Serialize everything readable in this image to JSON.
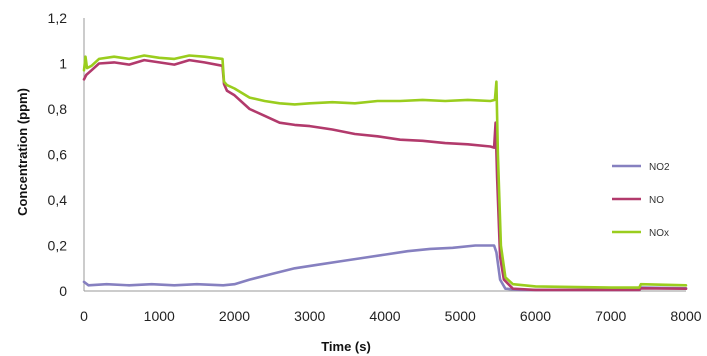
{
  "chart_data": {
    "type": "line",
    "title": "",
    "xlabel": "Time (s)",
    "ylabel": "Concentration (ppm)",
    "xlim": [
      0,
      8000
    ],
    "ylim": [
      0,
      1.2
    ],
    "x_ticks": [
      "0",
      "1000",
      "2000",
      "3000",
      "4000",
      "5000",
      "6000",
      "7000",
      "8000"
    ],
    "y_ticks": [
      "0",
      "0,2",
      "0,4",
      "0,6",
      "0,8",
      "1",
      "1,2"
    ],
    "grid": false,
    "legend_position": "right",
    "series": [
      {
        "name": "NO2",
        "color": "#8680c0",
        "points": [
          [
            0,
            0.04
          ],
          [
            60,
            0.025
          ],
          [
            300,
            0.03
          ],
          [
            600,
            0.025
          ],
          [
            900,
            0.03
          ],
          [
            1200,
            0.025
          ],
          [
            1500,
            0.03
          ],
          [
            1850,
            0.025
          ],
          [
            2000,
            0.03
          ],
          [
            2200,
            0.05
          ],
          [
            2500,
            0.075
          ],
          [
            2800,
            0.1
          ],
          [
            3100,
            0.115
          ],
          [
            3400,
            0.13
          ],
          [
            3700,
            0.145
          ],
          [
            4000,
            0.16
          ],
          [
            4300,
            0.175
          ],
          [
            4600,
            0.185
          ],
          [
            4900,
            0.19
          ],
          [
            5200,
            0.2
          ],
          [
            5450,
            0.2
          ],
          [
            5480,
            0.17
          ],
          [
            5530,
            0.05
          ],
          [
            5600,
            0.01
          ],
          [
            5800,
            0.005
          ],
          [
            6200,
            0.005
          ],
          [
            7000,
            0.005
          ],
          [
            7380,
            0.005
          ],
          [
            7400,
            0.015
          ],
          [
            8000,
            0.012
          ]
        ]
      },
      {
        "name": "NO",
        "color": "#b23a6c",
        "points": [
          [
            0,
            0.93
          ],
          [
            30,
            0.95
          ],
          [
            100,
            0.97
          ],
          [
            200,
            1.0
          ],
          [
            400,
            1.005
          ],
          [
            600,
            0.995
          ],
          [
            800,
            1.015
          ],
          [
            1000,
            1.005
          ],
          [
            1200,
            0.995
          ],
          [
            1400,
            1.015
          ],
          [
            1600,
            1.005
          ],
          [
            1840,
            0.99
          ],
          [
            1860,
            0.91
          ],
          [
            1900,
            0.88
          ],
          [
            2000,
            0.86
          ],
          [
            2200,
            0.8
          ],
          [
            2400,
            0.77
          ],
          [
            2600,
            0.74
          ],
          [
            2800,
            0.73
          ],
          [
            3000,
            0.725
          ],
          [
            3300,
            0.71
          ],
          [
            3600,
            0.69
          ],
          [
            3900,
            0.68
          ],
          [
            4200,
            0.665
          ],
          [
            4500,
            0.66
          ],
          [
            4800,
            0.65
          ],
          [
            5100,
            0.645
          ],
          [
            5400,
            0.635
          ],
          [
            5450,
            0.63
          ],
          [
            5470,
            0.74
          ],
          [
            5490,
            0.5
          ],
          [
            5530,
            0.15
          ],
          [
            5580,
            0.05
          ],
          [
            5700,
            0.01
          ],
          [
            6000,
            0.005
          ],
          [
            7000,
            0.005
          ],
          [
            7380,
            0.005
          ],
          [
            7400,
            0.012
          ],
          [
            8000,
            0.01
          ]
        ]
      },
      {
        "name": "NOx",
        "color": "#9acd1e",
        "points": [
          [
            0,
            0.97
          ],
          [
            20,
            1.03
          ],
          [
            40,
            0.98
          ],
          [
            100,
            0.99
          ],
          [
            200,
            1.02
          ],
          [
            400,
            1.03
          ],
          [
            600,
            1.02
          ],
          [
            800,
            1.035
          ],
          [
            1000,
            1.025
          ],
          [
            1200,
            1.02
          ],
          [
            1400,
            1.035
          ],
          [
            1600,
            1.03
          ],
          [
            1840,
            1.02
          ],
          [
            1860,
            0.92
          ],
          [
            1900,
            0.905
          ],
          [
            2000,
            0.89
          ],
          [
            2200,
            0.85
          ],
          [
            2400,
            0.835
          ],
          [
            2600,
            0.825
          ],
          [
            2800,
            0.82
          ],
          [
            3000,
            0.825
          ],
          [
            3300,
            0.83
          ],
          [
            3600,
            0.825
          ],
          [
            3900,
            0.835
          ],
          [
            4200,
            0.835
          ],
          [
            4500,
            0.84
          ],
          [
            4800,
            0.835
          ],
          [
            5100,
            0.84
          ],
          [
            5400,
            0.835
          ],
          [
            5460,
            0.84
          ],
          [
            5480,
            0.92
          ],
          [
            5500,
            0.6
          ],
          [
            5540,
            0.2
          ],
          [
            5600,
            0.06
          ],
          [
            5700,
            0.03
          ],
          [
            6000,
            0.02
          ],
          [
            7000,
            0.015
          ],
          [
            7380,
            0.015
          ],
          [
            7400,
            0.03
          ],
          [
            8000,
            0.025
          ]
        ]
      }
    ]
  }
}
